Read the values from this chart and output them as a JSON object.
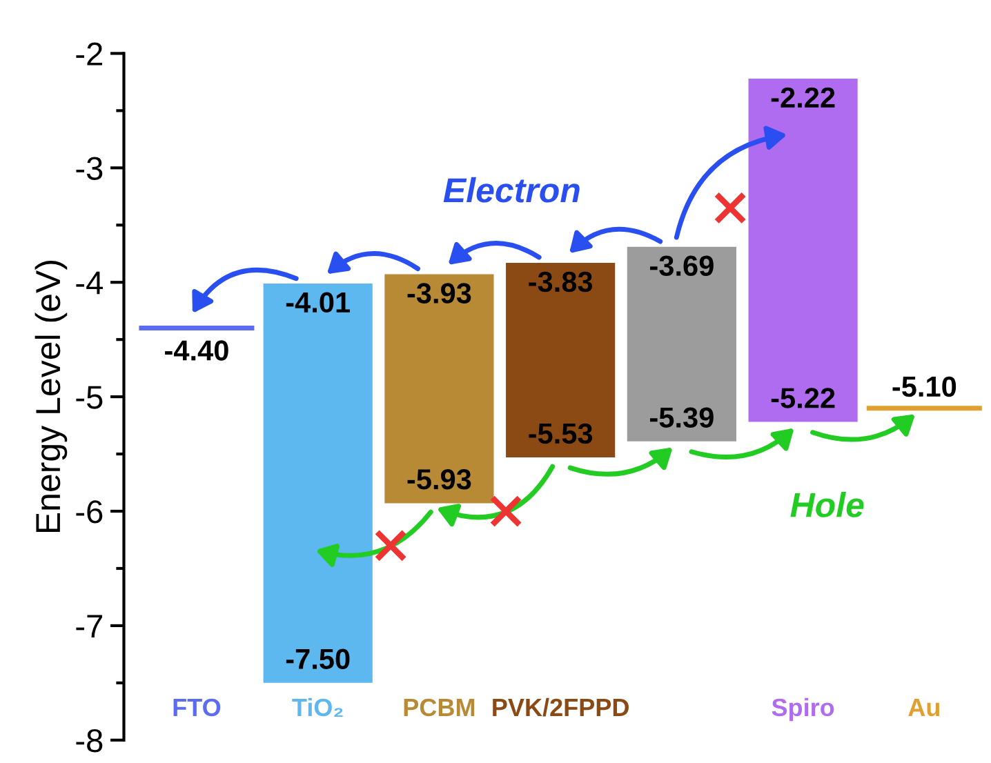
{
  "chart_data": {
    "type": "bar",
    "ylabel": "Energy Level (eV)",
    "categories": [
      "FTO",
      "TiO₂",
      "PCBM",
      "PVK/2FPPD",
      null,
      "Spiro",
      "Au"
    ],
    "base": [
      -4.4,
      -7.5,
      -5.93,
      -5.53,
      -5.39,
      -5.22,
      -5.1
    ],
    "values": [
      0,
      3.49,
      2.0,
      1.7,
      1.7,
      3.0,
      0
    ],
    "colors": [
      "#5b6cf0",
      "#5cb8ef",
      "#b88a35",
      "#8b4a14",
      "#9c9c9c",
      "#b06cf0",
      "#e0a030"
    ],
    "ylim": [
      -8,
      -2
    ],
    "yticks": [
      -8,
      -7,
      -6,
      -5,
      -4,
      -3,
      -2
    ],
    "grid": false,
    "legend": false,
    "annotations": [
      {
        "text": "-4.40",
        "x": "FTO",
        "y": -4.4
      },
      {
        "text": "-4.01",
        "x": "TiO₂",
        "y": -4.01
      },
      {
        "text": "-7.50",
        "x": "TiO₂",
        "y": -7.5
      },
      {
        "text": "-3.93",
        "x": "PCBM",
        "y": -3.93
      },
      {
        "text": "-5.93",
        "x": "PCBM",
        "y": -5.93
      },
      {
        "text": "-3.83",
        "x": "PVK/2FPPD",
        "y": -3.83
      },
      {
        "text": "-5.53",
        "x": "PVK/2FPPD",
        "y": -5.53
      },
      {
        "text": "-3.69",
        "y": -3.69
      },
      {
        "text": "-5.39",
        "y": -5.39
      },
      {
        "text": "-2.22",
        "x": "Spiro",
        "y": -2.22
      },
      {
        "text": "-5.22",
        "x": "Spiro",
        "y": -5.22
      },
      {
        "text": "-5.10",
        "x": "Au",
        "y": -5.1
      },
      "Electron",
      "Hole"
    ]
  }
}
